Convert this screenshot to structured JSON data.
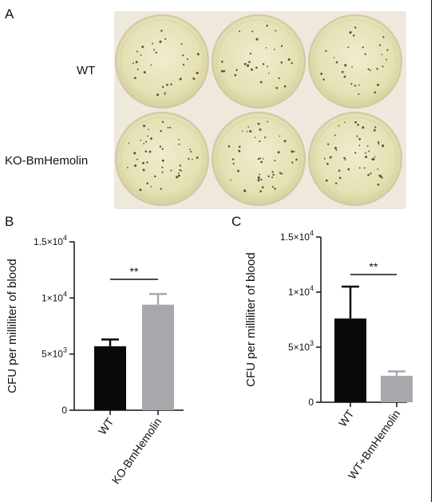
{
  "panels": {
    "a": {
      "letter": "A",
      "row_labels": [
        "WT",
        "KO-BmHemolin"
      ]
    },
    "b": {
      "letter": "B"
    },
    "c": {
      "letter": "C"
    }
  },
  "colors": {
    "dark_bar": "#0a0a0a",
    "light_bar": "#a8a8ac",
    "photo_bg": "#efe8dd",
    "plate": "#e6e3b8"
  },
  "chart_data": [
    {
      "type": "bar",
      "panel": "B",
      "categories": [
        "WT",
        "KO-BmHemolin"
      ],
      "values": [
        5700,
        9400
      ],
      "errors": [
        600,
        950
      ],
      "bar_colors": [
        "#0a0a0a",
        "#a8a8ac"
      ],
      "ylabel": "CFU per milliliter of blood",
      "ylim": [
        0,
        15000
      ],
      "ytick_values": [
        0,
        5000,
        10000,
        15000
      ],
      "ytick_labels": [
        {
          "mant": "0",
          "exp": ""
        },
        {
          "mant": "5×10",
          "exp": "3"
        },
        {
          "mant": "1×10",
          "exp": "4"
        },
        {
          "mant": "1.5×10",
          "exp": "4"
        }
      ],
      "significance": "**"
    },
    {
      "type": "bar",
      "panel": "C",
      "categories": [
        "WT",
        "WT+BmHemolin"
      ],
      "values": [
        7600,
        2400
      ],
      "errors": [
        2900,
        400
      ],
      "bar_colors": [
        "#0a0a0a",
        "#a8a8ac"
      ],
      "ylabel": "CFU per milliliter of blood",
      "ylim": [
        0,
        15000
      ],
      "ytick_values": [
        0,
        5000,
        10000,
        15000
      ],
      "ytick_labels": [
        {
          "mant": "0",
          "exp": ""
        },
        {
          "mant": "5×10",
          "exp": "3"
        },
        {
          "mant": "1×10",
          "exp": "4"
        },
        {
          "mant": "1.5×10",
          "exp": "4"
        }
      ],
      "significance": "**"
    }
  ]
}
